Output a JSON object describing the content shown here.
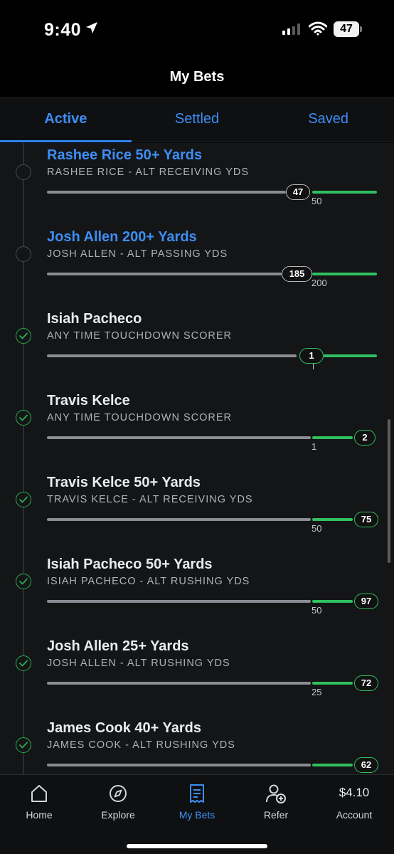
{
  "status_bar": {
    "time": "9:40",
    "battery": "47"
  },
  "header": {
    "title": "My Bets"
  },
  "tabs": [
    {
      "label": "Active",
      "active": true
    },
    {
      "label": "Settled",
      "active": false
    },
    {
      "label": "Saved",
      "active": false
    }
  ],
  "bets": [
    {
      "title": "Rashee Rice 50+ Yards",
      "subtitle": "RASHEE RICE - ALT RECEIVING YDS",
      "status": "pending",
      "current": "47",
      "target": "50",
      "progress": 0.94
    },
    {
      "title": "Josh Allen 200+ Yards",
      "subtitle": "JOSH ALLEN - ALT PASSING YDS",
      "status": "pending",
      "current": "185",
      "target": "200",
      "progress": 0.925
    },
    {
      "title": "Isiah Pacheco",
      "subtitle": "ANY TIME TOUCHDOWN SCORER",
      "status": "won",
      "current": "1",
      "target": "",
      "progress": 1.0
    },
    {
      "title": "Travis Kelce",
      "subtitle": "ANY TIME TOUCHDOWN SCORER",
      "status": "won",
      "current": "2",
      "target": "1",
      "progress": 1.0
    },
    {
      "title": "Travis Kelce 50+ Yards",
      "subtitle": "TRAVIS KELCE - ALT RECEIVING YDS",
      "status": "won",
      "current": "75",
      "target": "50",
      "progress": 1.0
    },
    {
      "title": "Isiah Pacheco 50+ Yards",
      "subtitle": "ISIAH PACHECO - ALT RUSHING YDS",
      "status": "won",
      "current": "97",
      "target": "50",
      "progress": 1.0
    },
    {
      "title": "Josh Allen 25+ Yards",
      "subtitle": "JOSH ALLEN - ALT RUSHING YDS",
      "status": "won",
      "current": "72",
      "target": "25",
      "progress": 1.0
    },
    {
      "title": "James Cook 40+ Yards",
      "subtitle": "JAMES COOK - ALT RUSHING YDS",
      "status": "won",
      "current": "62",
      "target": "",
      "progress": 1.0
    }
  ],
  "nav": {
    "home": "Home",
    "explore": "Explore",
    "my_bets": "My Bets",
    "refer": "Refer",
    "balance": "$4.10",
    "account": "Account"
  },
  "colors": {
    "accent": "#3d8ef5",
    "won": "#2fc060",
    "background": "#141517"
  },
  "icons": [
    "location-arrow-icon",
    "cellular-signal-icon",
    "wifi-icon",
    "battery-icon",
    "check-icon",
    "house-icon",
    "compass-icon",
    "receipt-icon",
    "add-person-icon"
  ]
}
